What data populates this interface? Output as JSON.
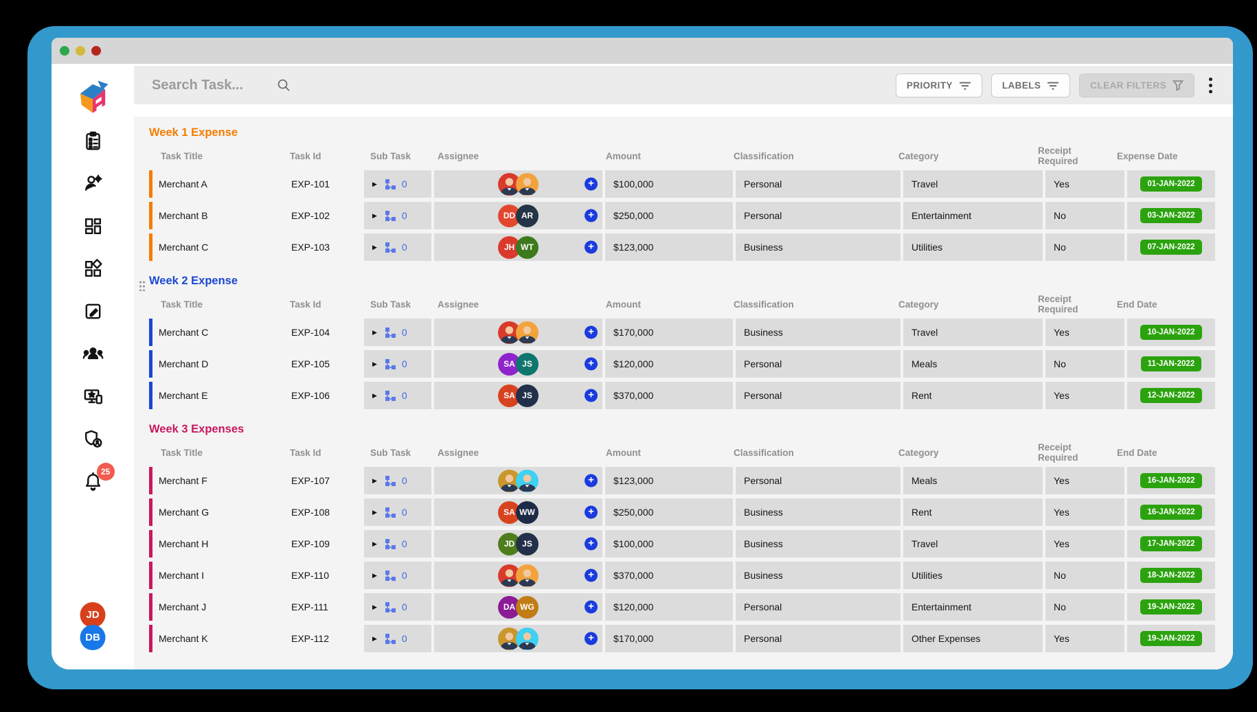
{
  "chrome": {
    "traffic_colors": [
      "#2ea84f",
      "#d4b93c",
      "#b3271c"
    ],
    "frame_color": "#3399cc"
  },
  "topbar": {
    "search_placeholder": "Search Task...",
    "priority_button": "PRIORITY",
    "labels_button": "LABELS",
    "clear_filters_button": "CLEAR FILTERS"
  },
  "sidebar": {
    "icons": [
      "task-list",
      "user-settings",
      "dashboard",
      "widgets",
      "edit-task",
      "teams",
      "devices",
      "privacy",
      "notifications"
    ],
    "notification_count": "25",
    "profiles": [
      {
        "initials": "JD",
        "color": "#d8401c"
      },
      {
        "initials": "DB",
        "color": "#1878e8"
      }
    ]
  },
  "colors": {
    "badge_green": "#2ba30e",
    "plus_blue": "#1a3bdd",
    "notif_red": "#f15b50",
    "subtask_blue": "#3b6ce0"
  },
  "table": {
    "headers": {
      "task_title": "Task Title",
      "task_id": "Task Id",
      "sub_task": "Sub Task",
      "assignee": "Assignee",
      "amount": "Amount",
      "classification": "Classification",
      "category": "Category",
      "receipt": "Receipt Required"
    }
  },
  "sections": [
    {
      "title": "Week 1 Expense",
      "accent": "#f57c00",
      "date_header": "Expense Date",
      "drag_handle": false,
      "rows": [
        {
          "title": "Merchant A",
          "id": "EXP-101",
          "sub_task": "0",
          "assignees": [
            {
              "photo": true,
              "bg": "#d93a2b"
            },
            {
              "photo": true,
              "bg": "#f2a33c"
            }
          ],
          "amount": "$100,000",
          "classification": "Personal",
          "category": "Travel",
          "receipt": "Yes",
          "date": "01-JAN-2022"
        },
        {
          "title": "Merchant B",
          "id": "EXP-102",
          "sub_task": "0",
          "assignees": [
            {
              "label": "DD",
              "bg": "#e2472e"
            },
            {
              "label": "AR",
              "bg": "#243447"
            }
          ],
          "amount": "$250,000",
          "classification": "Personal",
          "category": "Entertainment",
          "receipt": "No",
          "date": "03-JAN-2022"
        },
        {
          "title": "Merchant C",
          "id": "EXP-103",
          "sub_task": "0",
          "assignees": [
            {
              "label": "JH",
              "bg": "#d93a2b"
            },
            {
              "label": "WT",
              "bg": "#3c7a1d"
            }
          ],
          "amount": "$123,000",
          "classification": "Business",
          "category": "Utilities",
          "receipt": "No",
          "date": "07-JAN-2022"
        }
      ]
    },
    {
      "title": "Week 2 Expense",
      "accent": "#1a47d4",
      "date_header": "End Date",
      "drag_handle": true,
      "rows": [
        {
          "title": "Merchant C",
          "id": "EXP-104",
          "sub_task": "0",
          "assignees": [
            {
              "photo": true,
              "bg": "#d93a2b"
            },
            {
              "photo": true,
              "bg": "#f2a33c"
            }
          ],
          "amount": "$170,000",
          "classification": "Business",
          "category": "Travel",
          "receipt": "Yes",
          "date": "10-JAN-2022"
        },
        {
          "title": "Merchant D",
          "id": "EXP-105",
          "sub_task": "0",
          "assignees": [
            {
              "label": "SA",
              "bg": "#8e24cc"
            },
            {
              "label": "JS",
              "bg": "#0f766e"
            }
          ],
          "amount": "$120,000",
          "classification": "Personal",
          "category": "Meals",
          "receipt": "No",
          "date": "11-JAN-2022"
        },
        {
          "title": "Merchant E",
          "id": "EXP-106",
          "sub_task": "0",
          "assignees": [
            {
              "label": "SA",
              "bg": "#d8431f"
            },
            {
              "label": "JS",
              "bg": "#22304a"
            }
          ],
          "amount": "$370,000",
          "classification": "Personal",
          "category": "Rent",
          "receipt": "Yes",
          "date": "12-JAN-2022"
        }
      ]
    },
    {
      "title": "Week 3 Expenses",
      "accent": "#c9185f",
      "date_header": "End Date",
      "drag_handle": false,
      "rows": [
        {
          "title": "Merchant F",
          "id": "EXP-107",
          "sub_task": "0",
          "assignees": [
            {
              "photo": true,
              "bg": "#c9972c"
            },
            {
              "photo": true,
              "bg": "#3fd0f2"
            }
          ],
          "amount": "$123,000",
          "classification": "Personal",
          "category": "Meals",
          "receipt": "Yes",
          "date": "16-JAN-2022"
        },
        {
          "title": "Merchant G",
          "id": "EXP-108",
          "sub_task": "0",
          "assignees": [
            {
              "label": "SA",
              "bg": "#d8431f"
            },
            {
              "label": "WW",
              "bg": "#1d2b47"
            }
          ],
          "amount": "$250,000",
          "classification": "Business",
          "category": "Rent",
          "receipt": "Yes",
          "date": "16-JAN-2022"
        },
        {
          "title": "Merchant H",
          "id": "EXP-109",
          "sub_task": "0",
          "assignees": [
            {
              "label": "JD",
              "bg": "#4e7d1c"
            },
            {
              "label": "JS",
              "bg": "#22304a"
            }
          ],
          "amount": "$100,000",
          "classification": "Business",
          "category": "Travel",
          "receipt": "Yes",
          "date": "17-JAN-2022"
        },
        {
          "title": "Merchant I",
          "id": "EXP-110",
          "sub_task": "0",
          "assignees": [
            {
              "photo": true,
              "bg": "#d93a2b"
            },
            {
              "photo": true,
              "bg": "#f2a33c"
            }
          ],
          "amount": "$370,000",
          "classification": "Business",
          "category": "Utilities",
          "receipt": "No",
          "date": "18-JAN-2022"
        },
        {
          "title": "Merchant J",
          "id": "EXP-111",
          "sub_task": "0",
          "assignees": [
            {
              "label": "DA",
              "bg": "#8c1b96"
            },
            {
              "label": "WG",
              "bg": "#c07c15"
            }
          ],
          "amount": "$120,000",
          "classification": "Personal",
          "category": "Entertainment",
          "receipt": "No",
          "date": "19-JAN-2022"
        },
        {
          "title": "Merchant K",
          "id": "EXP-112",
          "sub_task": "0",
          "assignees": [
            {
              "photo": true,
              "bg": "#c9972c"
            },
            {
              "photo": true,
              "bg": "#3fd0f2"
            }
          ],
          "amount": "$170,000",
          "classification": "Personal",
          "category": "Other Expenses",
          "receipt": "Yes",
          "date": "19-JAN-2022"
        }
      ]
    }
  ]
}
